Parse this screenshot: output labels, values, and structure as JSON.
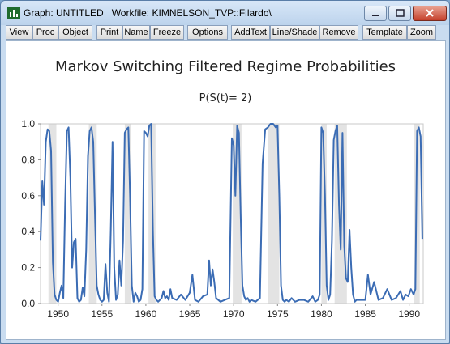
{
  "window": {
    "title": "Graph: UNTITLED   Workfile: KIMNELSON_TVP::Filardo\\",
    "controls": [
      "minimize",
      "maximize",
      "close"
    ]
  },
  "toolbar": {
    "buttons": [
      "View",
      "Proc",
      "Object",
      "Print",
      "Name",
      "Freeze",
      "Options",
      "AddText",
      "Line/Shade",
      "Remove",
      "Template",
      "Zoom"
    ]
  },
  "chart_data": {
    "type": "line",
    "title": "Markov Switching Filtered Regime Probabilities",
    "subtitle": "P(S(t)= 2)",
    "xlabel": "",
    "ylabel": "",
    "xlim": [
      1948.0,
      1991.6
    ],
    "ylim": [
      0.0,
      1.0
    ],
    "x_ticks": [
      1950,
      1955,
      1960,
      1965,
      1970,
      1975,
      1980,
      1985,
      1990
    ],
    "y_ticks": [
      "0.0",
      "0.2",
      "0.4",
      "0.6",
      "0.8",
      "1.0"
    ],
    "grid": false,
    "line_color": "#3b6cb4",
    "shade_color": "#e3e3e3",
    "shaded_periods": [
      [
        1948.9,
        1949.8
      ],
      [
        1953.5,
        1954.4
      ],
      [
        1957.6,
        1958.3
      ],
      [
        1960.3,
        1961.1
      ],
      [
        1969.9,
        1970.9
      ],
      [
        1973.9,
        1975.2
      ],
      [
        1980.0,
        1980.6
      ],
      [
        1981.5,
        1982.9
      ],
      [
        1990.5,
        1991.2
      ]
    ],
    "series": [
      {
        "x": [
          1948.0,
          1948.2,
          1948.4,
          1948.6,
          1948.8,
          1949.0,
          1949.2,
          1949.4,
          1949.6,
          1949.8,
          1950.0,
          1950.2,
          1950.4,
          1950.6,
          1950.8,
          1951.0,
          1951.2,
          1951.4,
          1951.6,
          1951.8,
          1952.0,
          1952.2,
          1952.4,
          1952.6,
          1952.8,
          1953.0,
          1953.2,
          1953.4,
          1953.6,
          1953.8,
          1954.0,
          1954.2,
          1954.4,
          1954.6,
          1954.8,
          1955.0,
          1955.2,
          1955.4,
          1955.6,
          1955.8,
          1956.0,
          1956.2,
          1956.4,
          1956.6,
          1956.8,
          1957.0,
          1957.2,
          1957.4,
          1957.6,
          1957.8,
          1958.0,
          1958.2,
          1958.4,
          1958.6,
          1958.8,
          1959.0,
          1959.2,
          1959.4,
          1959.6,
          1959.8,
          1960.0,
          1960.2,
          1960.4,
          1960.6,
          1960.8,
          1961.0,
          1961.2,
          1961.4,
          1961.6,
          1961.8,
          1962.0,
          1962.2,
          1962.4,
          1962.6,
          1962.8,
          1963.0,
          1963.5,
          1964.0,
          1964.5,
          1965.0,
          1965.3,
          1965.6,
          1966.0,
          1966.5,
          1967.0,
          1967.2,
          1967.4,
          1967.6,
          1967.8,
          1968.0,
          1968.5,
          1969.0,
          1969.5,
          1969.8,
          1970.0,
          1970.2,
          1970.4,
          1970.6,
          1970.8,
          1971.0,
          1971.2,
          1971.4,
          1971.6,
          1971.8,
          1972.0,
          1972.5,
          1973.0,
          1973.3,
          1973.6,
          1973.9,
          1974.2,
          1974.5,
          1974.8,
          1975.0,
          1975.2,
          1975.4,
          1975.6,
          1975.8,
          1976.0,
          1976.3,
          1976.6,
          1977.0,
          1977.5,
          1978.0,
          1978.5,
          1979.0,
          1979.3,
          1979.6,
          1979.8,
          1980.0,
          1980.2,
          1980.4,
          1980.6,
          1980.8,
          1981.0,
          1981.2,
          1981.4,
          1981.6,
          1981.8,
          1982.0,
          1982.2,
          1982.4,
          1982.6,
          1982.8,
          1983.0,
          1983.2,
          1983.4,
          1983.6,
          1983.8,
          1984.0,
          1984.5,
          1985.0,
          1985.3,
          1985.6,
          1986.0,
          1986.5,
          1987.0,
          1987.5,
          1988.0,
          1988.5,
          1989.0,
          1989.3,
          1989.6,
          1989.9,
          1990.2,
          1990.5,
          1990.7,
          1990.9,
          1991.1,
          1991.3,
          1991.5
        ],
        "values": [
          0.35,
          0.68,
          0.55,
          0.9,
          0.97,
          0.96,
          0.85,
          0.23,
          0.05,
          0.02,
          0.01,
          0.06,
          0.1,
          0.03,
          0.55,
          0.96,
          0.98,
          0.7,
          0.2,
          0.34,
          0.36,
          0.03,
          0.01,
          0.02,
          0.09,
          0.04,
          0.3,
          0.82,
          0.96,
          0.98,
          0.9,
          0.5,
          0.1,
          0.05,
          0.02,
          0.01,
          0.02,
          0.22,
          0.06,
          0.01,
          0.4,
          0.9,
          0.2,
          0.02,
          0.05,
          0.24,
          0.1,
          0.35,
          0.95,
          0.97,
          0.98,
          0.6,
          0.1,
          0.01,
          0.06,
          0.04,
          0.01,
          0.02,
          0.08,
          0.96,
          0.95,
          0.93,
          0.99,
          1.0,
          0.4,
          0.04,
          0.02,
          0.01,
          0.02,
          0.03,
          0.07,
          0.03,
          0.04,
          0.02,
          0.08,
          0.03,
          0.02,
          0.05,
          0.02,
          0.06,
          0.16,
          0.02,
          0.01,
          0.04,
          0.05,
          0.24,
          0.1,
          0.19,
          0.12,
          0.03,
          0.01,
          0.02,
          0.03,
          0.92,
          0.88,
          0.6,
          0.99,
          0.95,
          0.5,
          0.1,
          0.04,
          0.02,
          0.03,
          0.01,
          0.02,
          0.01,
          0.03,
          0.78,
          0.97,
          0.98,
          1.0,
          1.0,
          0.98,
          0.99,
          0.6,
          0.1,
          0.02,
          0.01,
          0.02,
          0.01,
          0.03,
          0.01,
          0.02,
          0.02,
          0.01,
          0.04,
          0.01,
          0.02,
          0.05,
          0.98,
          0.95,
          0.6,
          0.1,
          0.02,
          0.05,
          0.35,
          0.91,
          0.96,
          0.99,
          0.55,
          0.3,
          0.95,
          0.32,
          0.14,
          0.12,
          0.41,
          0.2,
          0.05,
          0.01,
          0.02,
          0.02,
          0.02,
          0.16,
          0.05,
          0.12,
          0.02,
          0.03,
          0.08,
          0.02,
          0.03,
          0.07,
          0.02,
          0.05,
          0.04,
          0.08,
          0.05,
          0.08,
          0.96,
          0.98,
          0.93,
          0.36
        ]
      }
    ]
  }
}
